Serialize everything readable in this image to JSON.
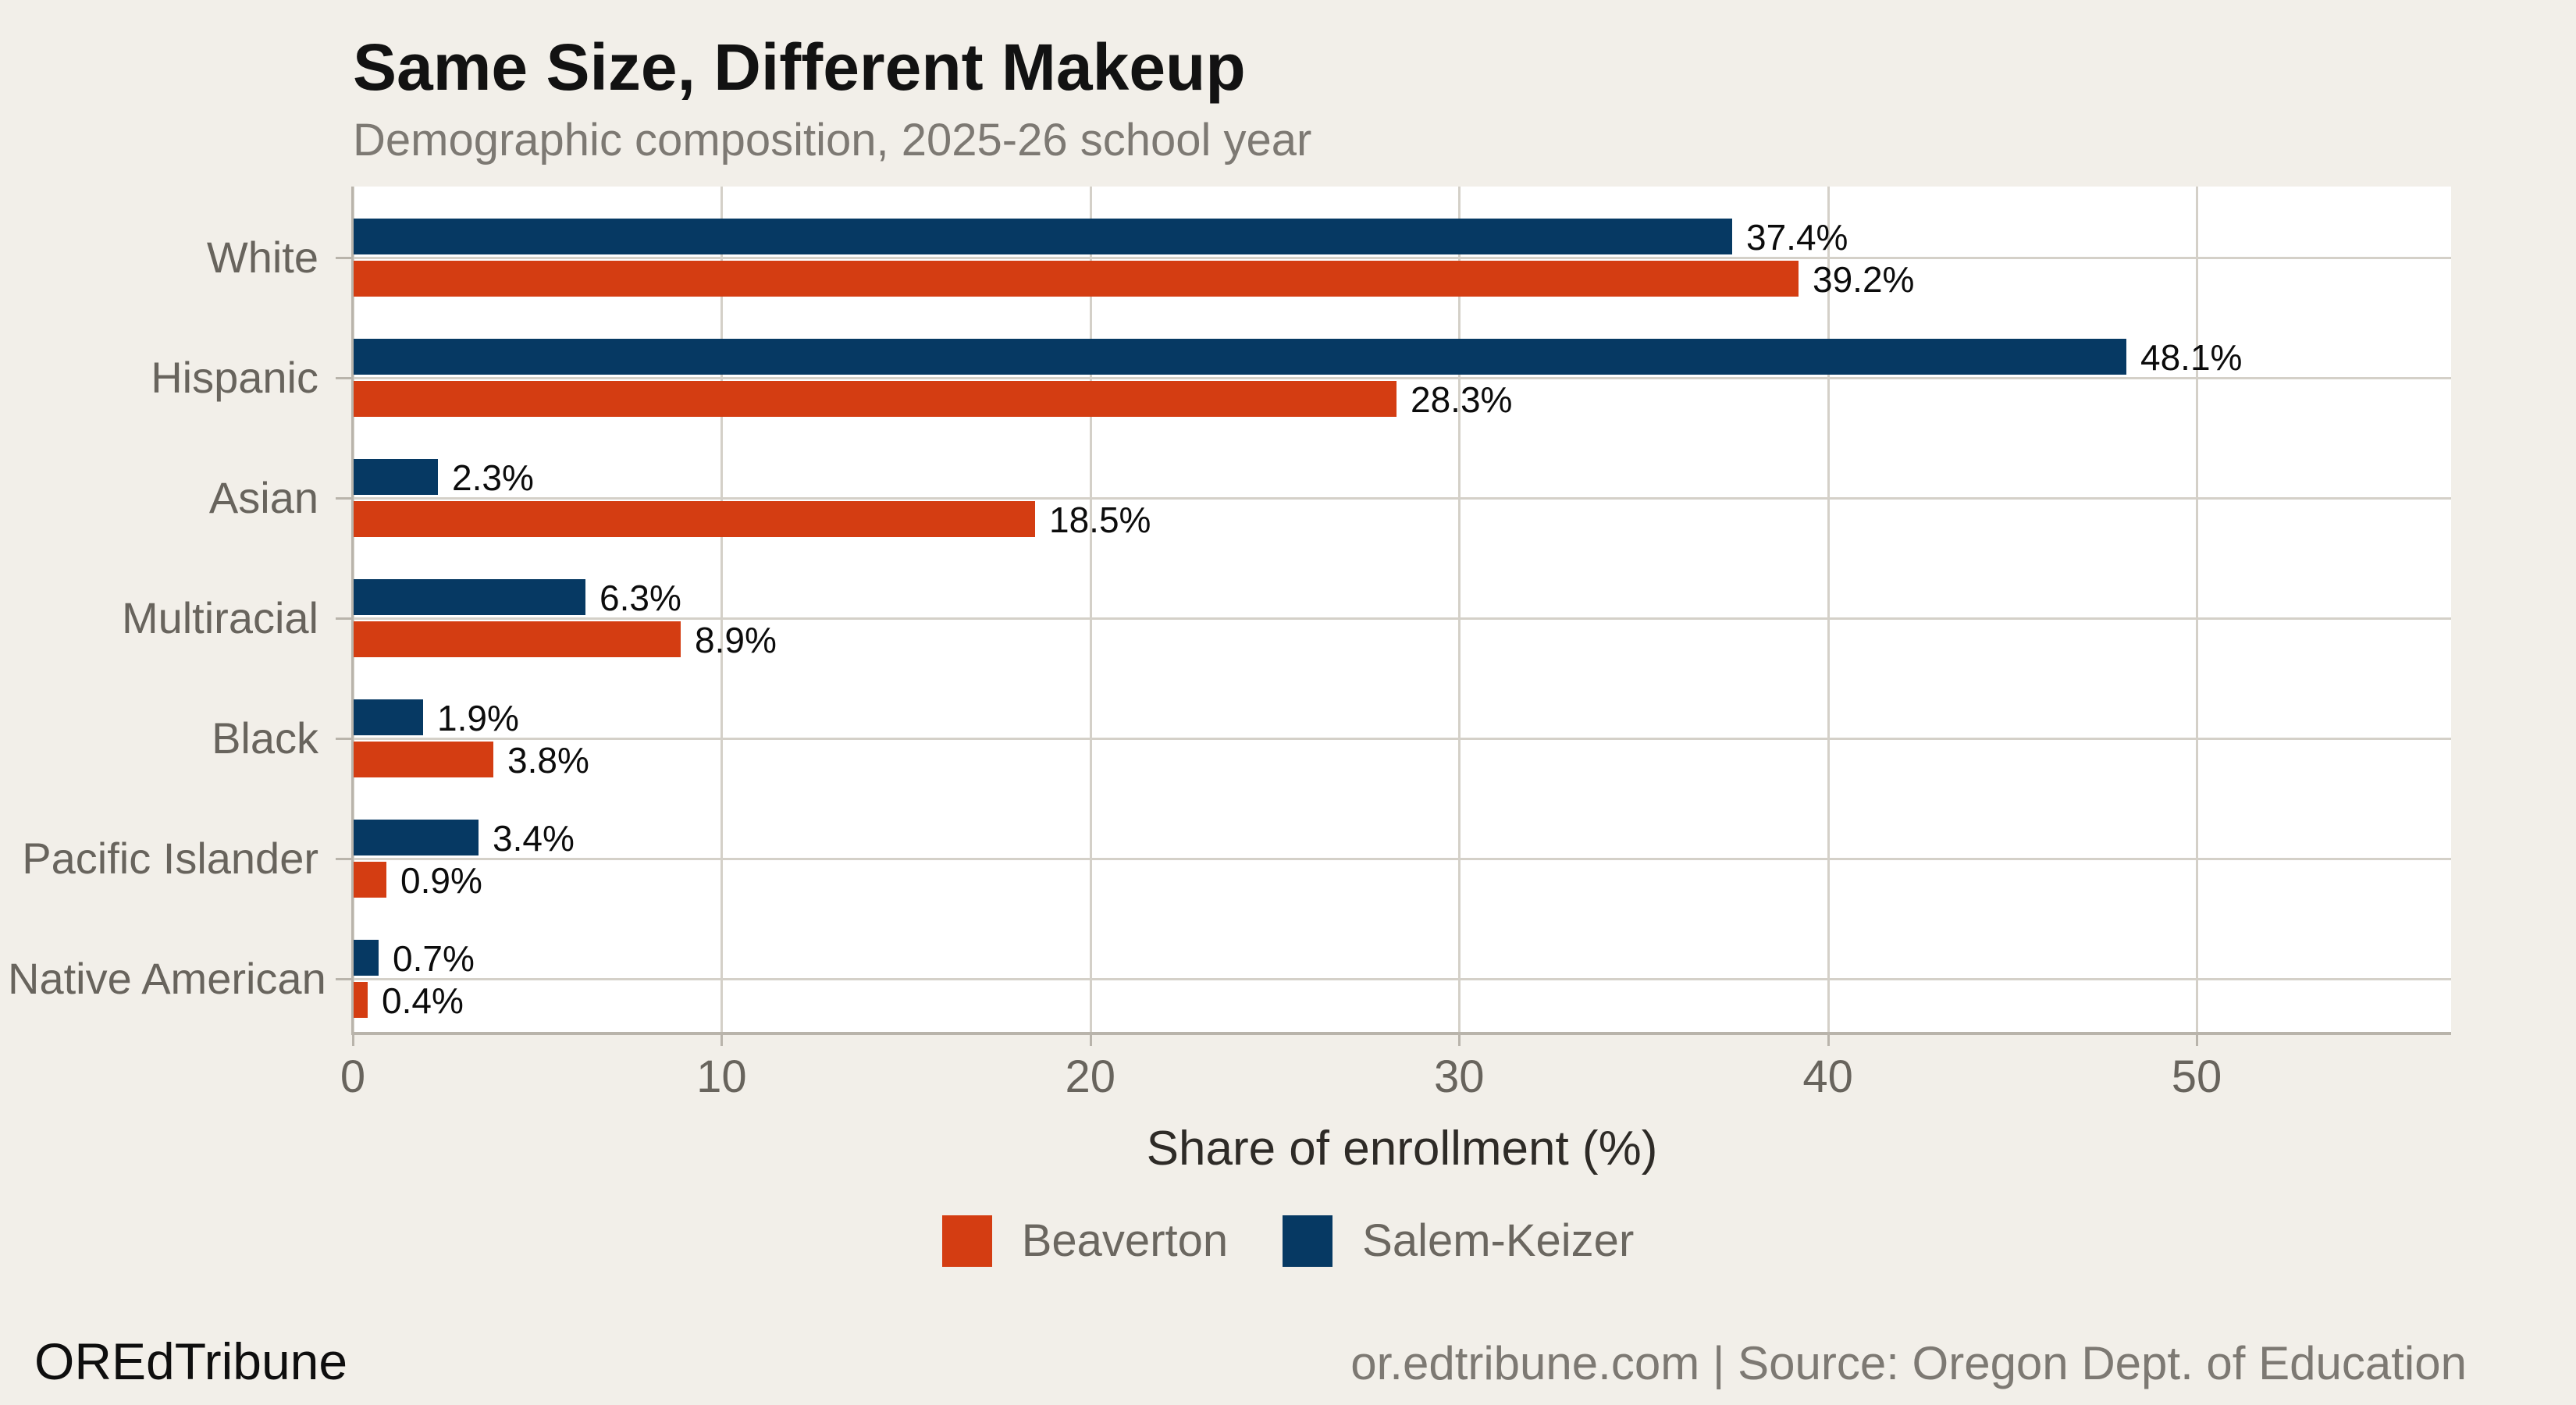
{
  "header": {
    "title": "Same Size, Different Makeup",
    "subtitle": "Demographic composition, 2025-26 school year"
  },
  "chart_data": {
    "type": "bar",
    "orientation": "horizontal",
    "title": "Same Size, Different Makeup",
    "subtitle": "Demographic composition, 2025-26 school year",
    "categories": [
      "White",
      "Hispanic",
      "Asian",
      "Multiracial",
      "Black",
      "Pacific Islander",
      "Native American"
    ],
    "series": [
      {
        "name": "Salem-Keizer",
        "color": "#063963",
        "group_position": "top",
        "values": [
          37.4,
          48.1,
          2.3,
          6.3,
          1.9,
          3.4,
          0.7
        ]
      },
      {
        "name": "Beaverton",
        "color": "#d43d12",
        "group_position": "bottom",
        "values": [
          39.2,
          28.3,
          18.5,
          8.9,
          3.8,
          0.9,
          0.4
        ]
      }
    ],
    "value_label_suffix": "%",
    "value_labels": {
      "Salem-Keizer": [
        "37.4%",
        "48.1%",
        "2.3%",
        "6.3%",
        "1.9%",
        "3.4%",
        "0.7%"
      ],
      "Beaverton": [
        "39.2%",
        "28.3%",
        "18.5%",
        "8.9%",
        "3.8%",
        "0.9%",
        "0.4%"
      ]
    },
    "xlabel": "Share of enrollment (%)",
    "xticks": [
      0,
      10,
      20,
      30,
      40,
      50
    ],
    "xlim": [
      0,
      56.9
    ],
    "grid": true,
    "plot_background": "#ffffff",
    "legend_position": "bottom-center"
  },
  "legend": {
    "items": [
      {
        "label": "Beaverton",
        "color": "#d43d12"
      },
      {
        "label": "Salem-Keizer",
        "color": "#063963"
      }
    ]
  },
  "footer": {
    "brand": "OREdTribune",
    "source": "or.edtribune.com | Source: Oregon Dept. of Education"
  },
  "colors": {
    "background": "#f2efe9",
    "plot_background": "#ffffff",
    "gridline": "#d4d0c8",
    "spine": "#b9b4ab",
    "title_text": "#121212",
    "muted_text": "#7d7973",
    "tick_text": "#68645d",
    "beaverton_red": "#d43d12",
    "salem_keizer_navy": "#063963"
  }
}
